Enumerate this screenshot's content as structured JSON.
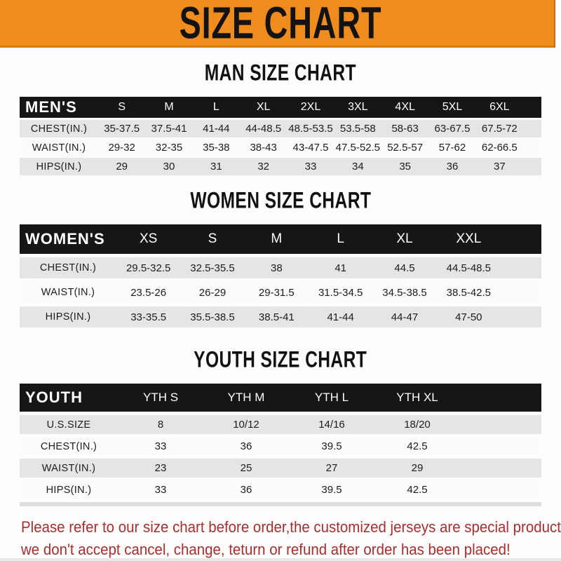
{
  "banner": {
    "title": "SIZE CHART"
  },
  "colors": {
    "banner_orange": "#ee8c1e",
    "table_header_black": "#161616",
    "row_gray": "#e5e5e5",
    "note_red": "#a62f2f"
  },
  "man": {
    "title": "MAN SIZE CHART",
    "header": [
      "MEN'S",
      "S",
      "M",
      "L",
      "XL",
      "2XL",
      "3XL",
      "4XL",
      "5XL",
      "6XL"
    ],
    "rows": [
      {
        "label": "CHEST(IN.)",
        "values": [
          "35-37.5",
          "37.5-41",
          "41-44",
          "44-48.5",
          "48.5-53.5",
          "53.5-58",
          "58-63",
          "63-67.5",
          "67.5-72"
        ]
      },
      {
        "label": "WAIST(IN.)",
        "values": [
          "29-32",
          "32-35",
          "35-38",
          "38-43",
          "43-47.5",
          "47.5-52.5",
          "52.5-57",
          "57-62",
          "62-66.5"
        ]
      },
      {
        "label": "HIPS(IN.)",
        "values": [
          "29",
          "30",
          "31",
          "32",
          "33",
          "34",
          "35",
          "36",
          "37"
        ]
      }
    ]
  },
  "women": {
    "title": "WOMEN SIZE CHART",
    "header": [
      "WOMEN'S",
      "XS",
      "S",
      "M",
      "L",
      "XL",
      "XXL"
    ],
    "rows": [
      {
        "label": "CHEST(IN.)",
        "values": [
          "29.5-32.5",
          "32.5-35.5",
          "38",
          "41",
          "44.5",
          "44.5-48.5"
        ]
      },
      {
        "label": "WAIST(IN.)",
        "values": [
          "23.5-26",
          "26-29",
          "29-31.5",
          "31.5-34.5",
          "34.5-38.5",
          "38.5-42.5"
        ]
      },
      {
        "label": "HIPS(IN.)",
        "values": [
          "33-35.5",
          "35.5-38.5",
          "38.5-41",
          "41-44",
          "44-47",
          "47-50"
        ]
      }
    ]
  },
  "youth": {
    "title": "YOUTH SIZE CHART",
    "header": [
      "YOUTH",
      "YTH S",
      "YTH M",
      "YTH L",
      "YTH XL"
    ],
    "rows": [
      {
        "label": "U.S.SIZE",
        "values": [
          "8",
          "10/12",
          "14/16",
          "18/20"
        ]
      },
      {
        "label": "CHEST(IN.)",
        "values": [
          "33",
          "36",
          "39.5",
          "42.5"
        ]
      },
      {
        "label": "WAIST(IN.)",
        "values": [
          "23",
          "25",
          "27",
          "29"
        ]
      },
      {
        "label": "HIPS(IN.)",
        "values": [
          "33",
          "36",
          "39.5",
          "42.5"
        ]
      }
    ]
  },
  "note": {
    "line1": "Please refer to our size chart before order,the customized jerseys are special products,",
    "line2": "we don't accept cancel, change, teturn or refund after order has been placed!"
  }
}
